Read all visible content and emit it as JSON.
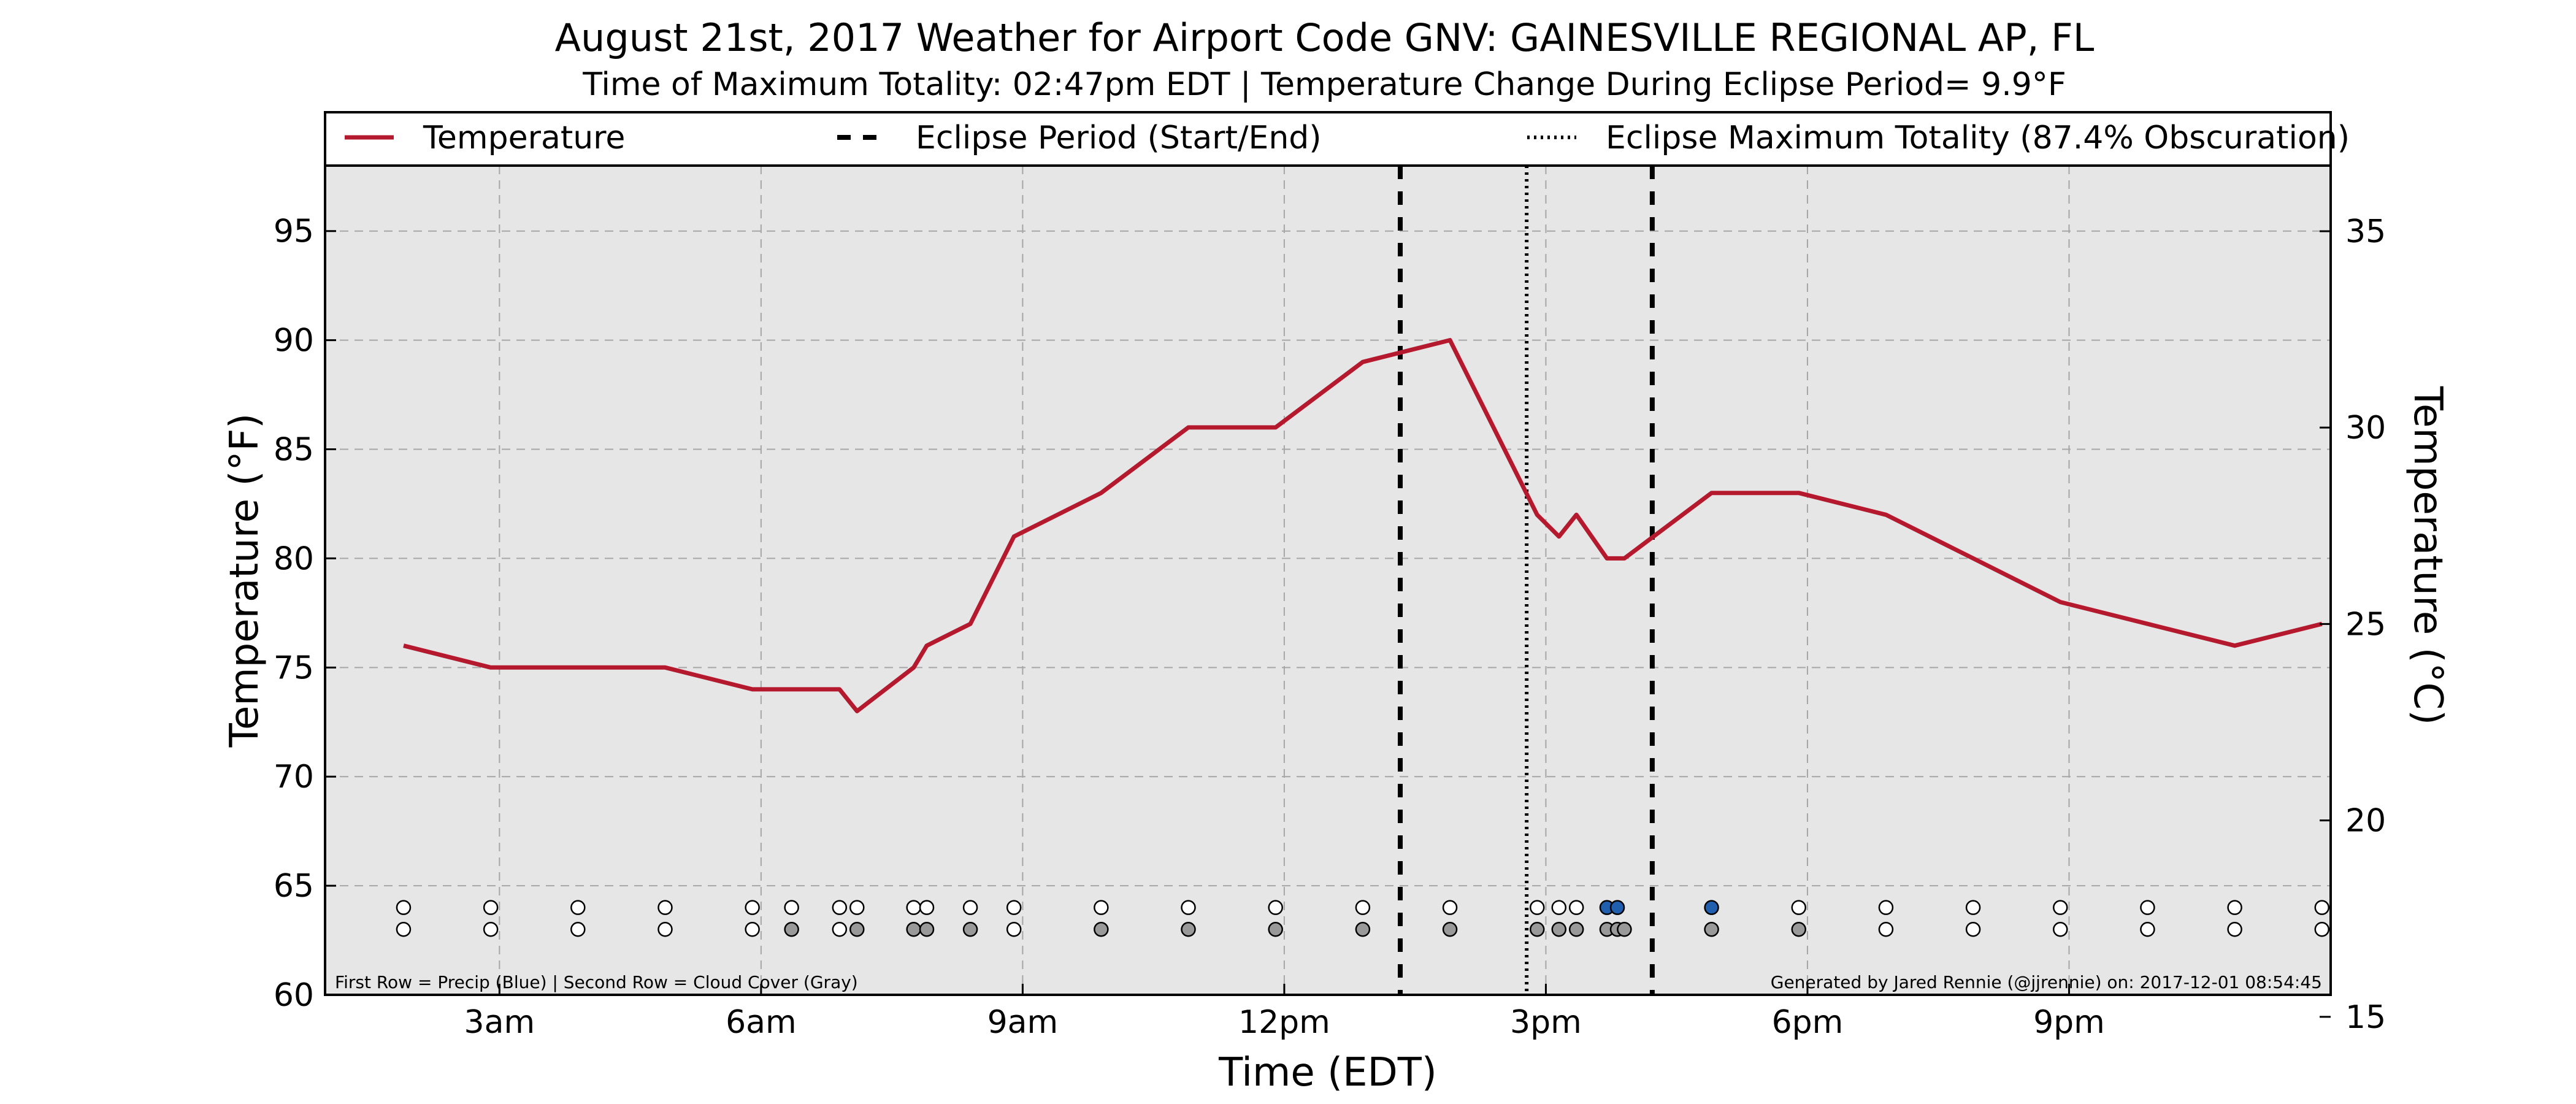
{
  "header": {
    "title": "August 21st, 2017 Weather for Airport Code GNV: GAINESVILLE REGIONAL AP, FL",
    "subtitle": "Time of Maximum Totality: 02:47pm EDT | Temperature Change During Eclipse Period= 9.9°F"
  },
  "notes": {
    "left": "First Row = Precip (Blue) | Second Row = Cloud Cover (Gray)",
    "right": "Generated by Jared Rennie (@jjrennie) on: 2017-12-01 08:54:45"
  },
  "colors": {
    "temperature_line": "#b5192e",
    "plot_background": "#e6e6e6",
    "gridline": "#a6a6a6",
    "precip_marker": "#1f5fae",
    "cloud_marker": "#999999",
    "empty_marker": "#ffffff"
  },
  "chart_data": {
    "type": "line",
    "title": "August 21st, 2017 Weather for Airport Code GNV: GAINESVILLE REGIONAL AP, FL",
    "subtitle": "Time of Maximum Totality: 02:47pm EDT | Temperature Change During Eclipse Period= 9.9°F",
    "xlabel": "Time (EDT)",
    "ylabel": "Temperature (°F)",
    "ylabel_right": "Temperature (°C)",
    "x_unit": "hour of day (EDT)",
    "xlim": [
      1.0,
      24.0
    ],
    "ylim": [
      60,
      98
    ],
    "ylim_right": [
      15.56,
      36.67
    ],
    "x_ticks": [
      {
        "x": 3,
        "label": "3am"
      },
      {
        "x": 6,
        "label": "6am"
      },
      {
        "x": 9,
        "label": "9am"
      },
      {
        "x": 12,
        "label": "12pm"
      },
      {
        "x": 15,
        "label": "3pm"
      },
      {
        "x": 18,
        "label": "6pm"
      },
      {
        "x": 21,
        "label": "9pm"
      }
    ],
    "y_ticks": [
      60,
      65,
      70,
      75,
      80,
      85,
      90,
      95
    ],
    "y_ticks_right": [
      15,
      20,
      25,
      30,
      35
    ],
    "grid": true,
    "legend_position": "top",
    "legend": [
      {
        "label": "Temperature",
        "style": "solid"
      },
      {
        "label": "Eclipse Period (Start/End)",
        "style": "dashed"
      },
      {
        "label": "Eclipse Maximum Totality (87.4% Obscuration)",
        "style": "dotted"
      }
    ],
    "series": [
      {
        "name": "Temperature",
        "x": [
          1.9,
          2.9,
          3.9,
          4.9,
          5.9,
          6.4,
          6.9,
          7.1,
          7.75,
          7.9,
          8.4,
          8.9,
          9.9,
          10.9,
          11.9,
          12.9,
          13.9,
          14.9,
          15.15,
          15.35,
          15.7,
          15.9,
          16.9,
          17.9,
          18.9,
          19.9,
          20.9,
          21.9,
          22.9,
          23.9
        ],
        "y": [
          76,
          75,
          75,
          75,
          74,
          74,
          74,
          73,
          75,
          76,
          77,
          81,
          83,
          86,
          86,
          89,
          90,
          82,
          81,
          82,
          80,
          80,
          83,
          83,
          82,
          80,
          78,
          77,
          76,
          77
        ]
      }
    ],
    "eclipse_period": {
      "start": 13.33,
      "end": 16.22
    },
    "max_totality": 14.78,
    "precip_row": [
      {
        "x": 1.9,
        "precip": false
      },
      {
        "x": 2.9,
        "precip": false
      },
      {
        "x": 3.9,
        "precip": false
      },
      {
        "x": 4.9,
        "precip": false
      },
      {
        "x": 5.9,
        "precip": false
      },
      {
        "x": 6.35,
        "precip": false
      },
      {
        "x": 6.9,
        "precip": false
      },
      {
        "x": 7.1,
        "precip": false
      },
      {
        "x": 7.75,
        "precip": false
      },
      {
        "x": 7.9,
        "precip": false
      },
      {
        "x": 8.4,
        "precip": false
      },
      {
        "x": 8.9,
        "precip": false
      },
      {
        "x": 9.9,
        "precip": false
      },
      {
        "x": 10.9,
        "precip": false
      },
      {
        "x": 11.9,
        "precip": false
      },
      {
        "x": 12.9,
        "precip": false
      },
      {
        "x": 13.9,
        "precip": false
      },
      {
        "x": 14.9,
        "precip": false
      },
      {
        "x": 15.15,
        "precip": false
      },
      {
        "x": 15.35,
        "precip": false
      },
      {
        "x": 15.7,
        "precip": true
      },
      {
        "x": 15.82,
        "precip": true
      },
      {
        "x": 16.9,
        "precip": true
      },
      {
        "x": 17.9,
        "precip": false
      },
      {
        "x": 18.9,
        "precip": false
      },
      {
        "x": 19.9,
        "precip": false
      },
      {
        "x": 20.9,
        "precip": false
      },
      {
        "x": 21.9,
        "precip": false
      },
      {
        "x": 22.9,
        "precip": false
      },
      {
        "x": 23.9,
        "precip": false
      }
    ],
    "cloud_row": [
      {
        "x": 1.9,
        "cloudy": false
      },
      {
        "x": 2.9,
        "cloudy": false
      },
      {
        "x": 3.9,
        "cloudy": false
      },
      {
        "x": 4.9,
        "cloudy": false
      },
      {
        "x": 5.9,
        "cloudy": false
      },
      {
        "x": 6.35,
        "cloudy": true
      },
      {
        "x": 6.9,
        "cloudy": false
      },
      {
        "x": 7.1,
        "cloudy": true
      },
      {
        "x": 7.75,
        "cloudy": true
      },
      {
        "x": 7.9,
        "cloudy": true
      },
      {
        "x": 8.4,
        "cloudy": true
      },
      {
        "x": 8.9,
        "cloudy": false
      },
      {
        "x": 9.9,
        "cloudy": true
      },
      {
        "x": 10.9,
        "cloudy": true
      },
      {
        "x": 11.9,
        "cloudy": true
      },
      {
        "x": 12.9,
        "cloudy": true
      },
      {
        "x": 13.9,
        "cloudy": true
      },
      {
        "x": 14.9,
        "cloudy": true
      },
      {
        "x": 15.15,
        "cloudy": true
      },
      {
        "x": 15.35,
        "cloudy": true
      },
      {
        "x": 15.7,
        "cloudy": true
      },
      {
        "x": 15.82,
        "cloudy": true
      },
      {
        "x": 15.9,
        "cloudy": true
      },
      {
        "x": 16.9,
        "cloudy": true
      },
      {
        "x": 17.9,
        "cloudy": true
      },
      {
        "x": 18.9,
        "cloudy": false
      },
      {
        "x": 19.9,
        "cloudy": false
      },
      {
        "x": 20.9,
        "cloudy": false
      },
      {
        "x": 21.9,
        "cloudy": false
      },
      {
        "x": 22.9,
        "cloudy": false
      },
      {
        "x": 23.9,
        "cloudy": false
      }
    ]
  }
}
